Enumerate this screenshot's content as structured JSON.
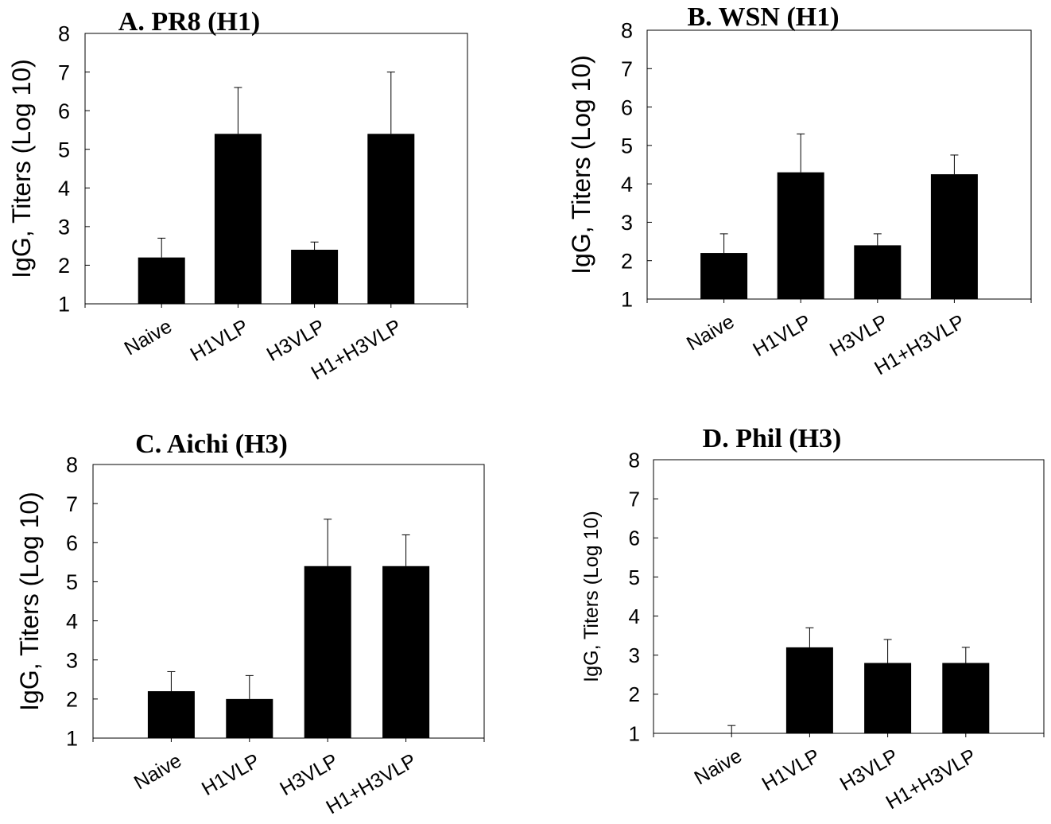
{
  "chart_data": [
    {
      "type": "bar",
      "title": "A. PR8 (H1)",
      "ylabel": "IgG, Titers (Log 10)",
      "xlabel": "",
      "categories": [
        "Naive",
        "H1VLP",
        "H3VLP",
        "H1+H3VLP"
      ],
      "values": [
        2.2,
        5.4,
        2.4,
        5.4
      ],
      "error_upper": [
        2.7,
        6.6,
        2.6,
        7.0
      ],
      "yticks": [
        "1",
        "2",
        "3",
        "4",
        "5",
        "6",
        "7",
        "8"
      ],
      "ylim": [
        1,
        8
      ],
      "color": "#000000",
      "grid": false,
      "legend": false
    },
    {
      "type": "bar",
      "title": "B. WSN (H1)",
      "ylabel": "IgG, Titers (Log 10)",
      "xlabel": "",
      "categories": [
        "Naive",
        "H1VLP",
        "H3VLP",
        "H1+H3VLP"
      ],
      "values": [
        2.2,
        4.3,
        2.4,
        4.25
      ],
      "error_upper": [
        2.7,
        5.3,
        2.7,
        4.75
      ],
      "yticks": [
        "1",
        "2",
        "3",
        "4",
        "5",
        "6",
        "7",
        "8"
      ],
      "ylim": [
        1,
        8
      ],
      "color": "#000000",
      "grid": false,
      "legend": false
    },
    {
      "type": "bar",
      "title": "C. Aichi (H3)",
      "ylabel": "IgG, Titers (Log 10)",
      "xlabel": "",
      "categories": [
        "Naive",
        "H1VLP",
        "H3VLP",
        "H1+H3VLP"
      ],
      "values": [
        2.2,
        2.0,
        5.4,
        5.4
      ],
      "error_upper": [
        2.7,
        2.6,
        6.6,
        6.2
      ],
      "yticks": [
        "1",
        "2",
        "3",
        "4",
        "5",
        "6",
        "7",
        "8"
      ],
      "ylim": [
        1,
        8
      ],
      "color": "#000000",
      "grid": false,
      "legend": false
    },
    {
      "type": "bar",
      "title": "D. Phil (H3)",
      "ylabel": "IgG, Titers (Log 10)",
      "xlabel": "",
      "categories": [
        "Naive",
        "H1VLP",
        "H3VLP",
        "H1+H3VLP"
      ],
      "values": [
        1.0,
        3.2,
        2.8,
        2.8
      ],
      "error_upper": [
        1.2,
        3.7,
        3.4,
        3.2
      ],
      "yticks": [
        "1",
        "2",
        "3",
        "4",
        "5",
        "6",
        "7",
        "8"
      ],
      "ylim": [
        1,
        8
      ],
      "color": "#000000",
      "grid": false,
      "legend": false
    }
  ]
}
